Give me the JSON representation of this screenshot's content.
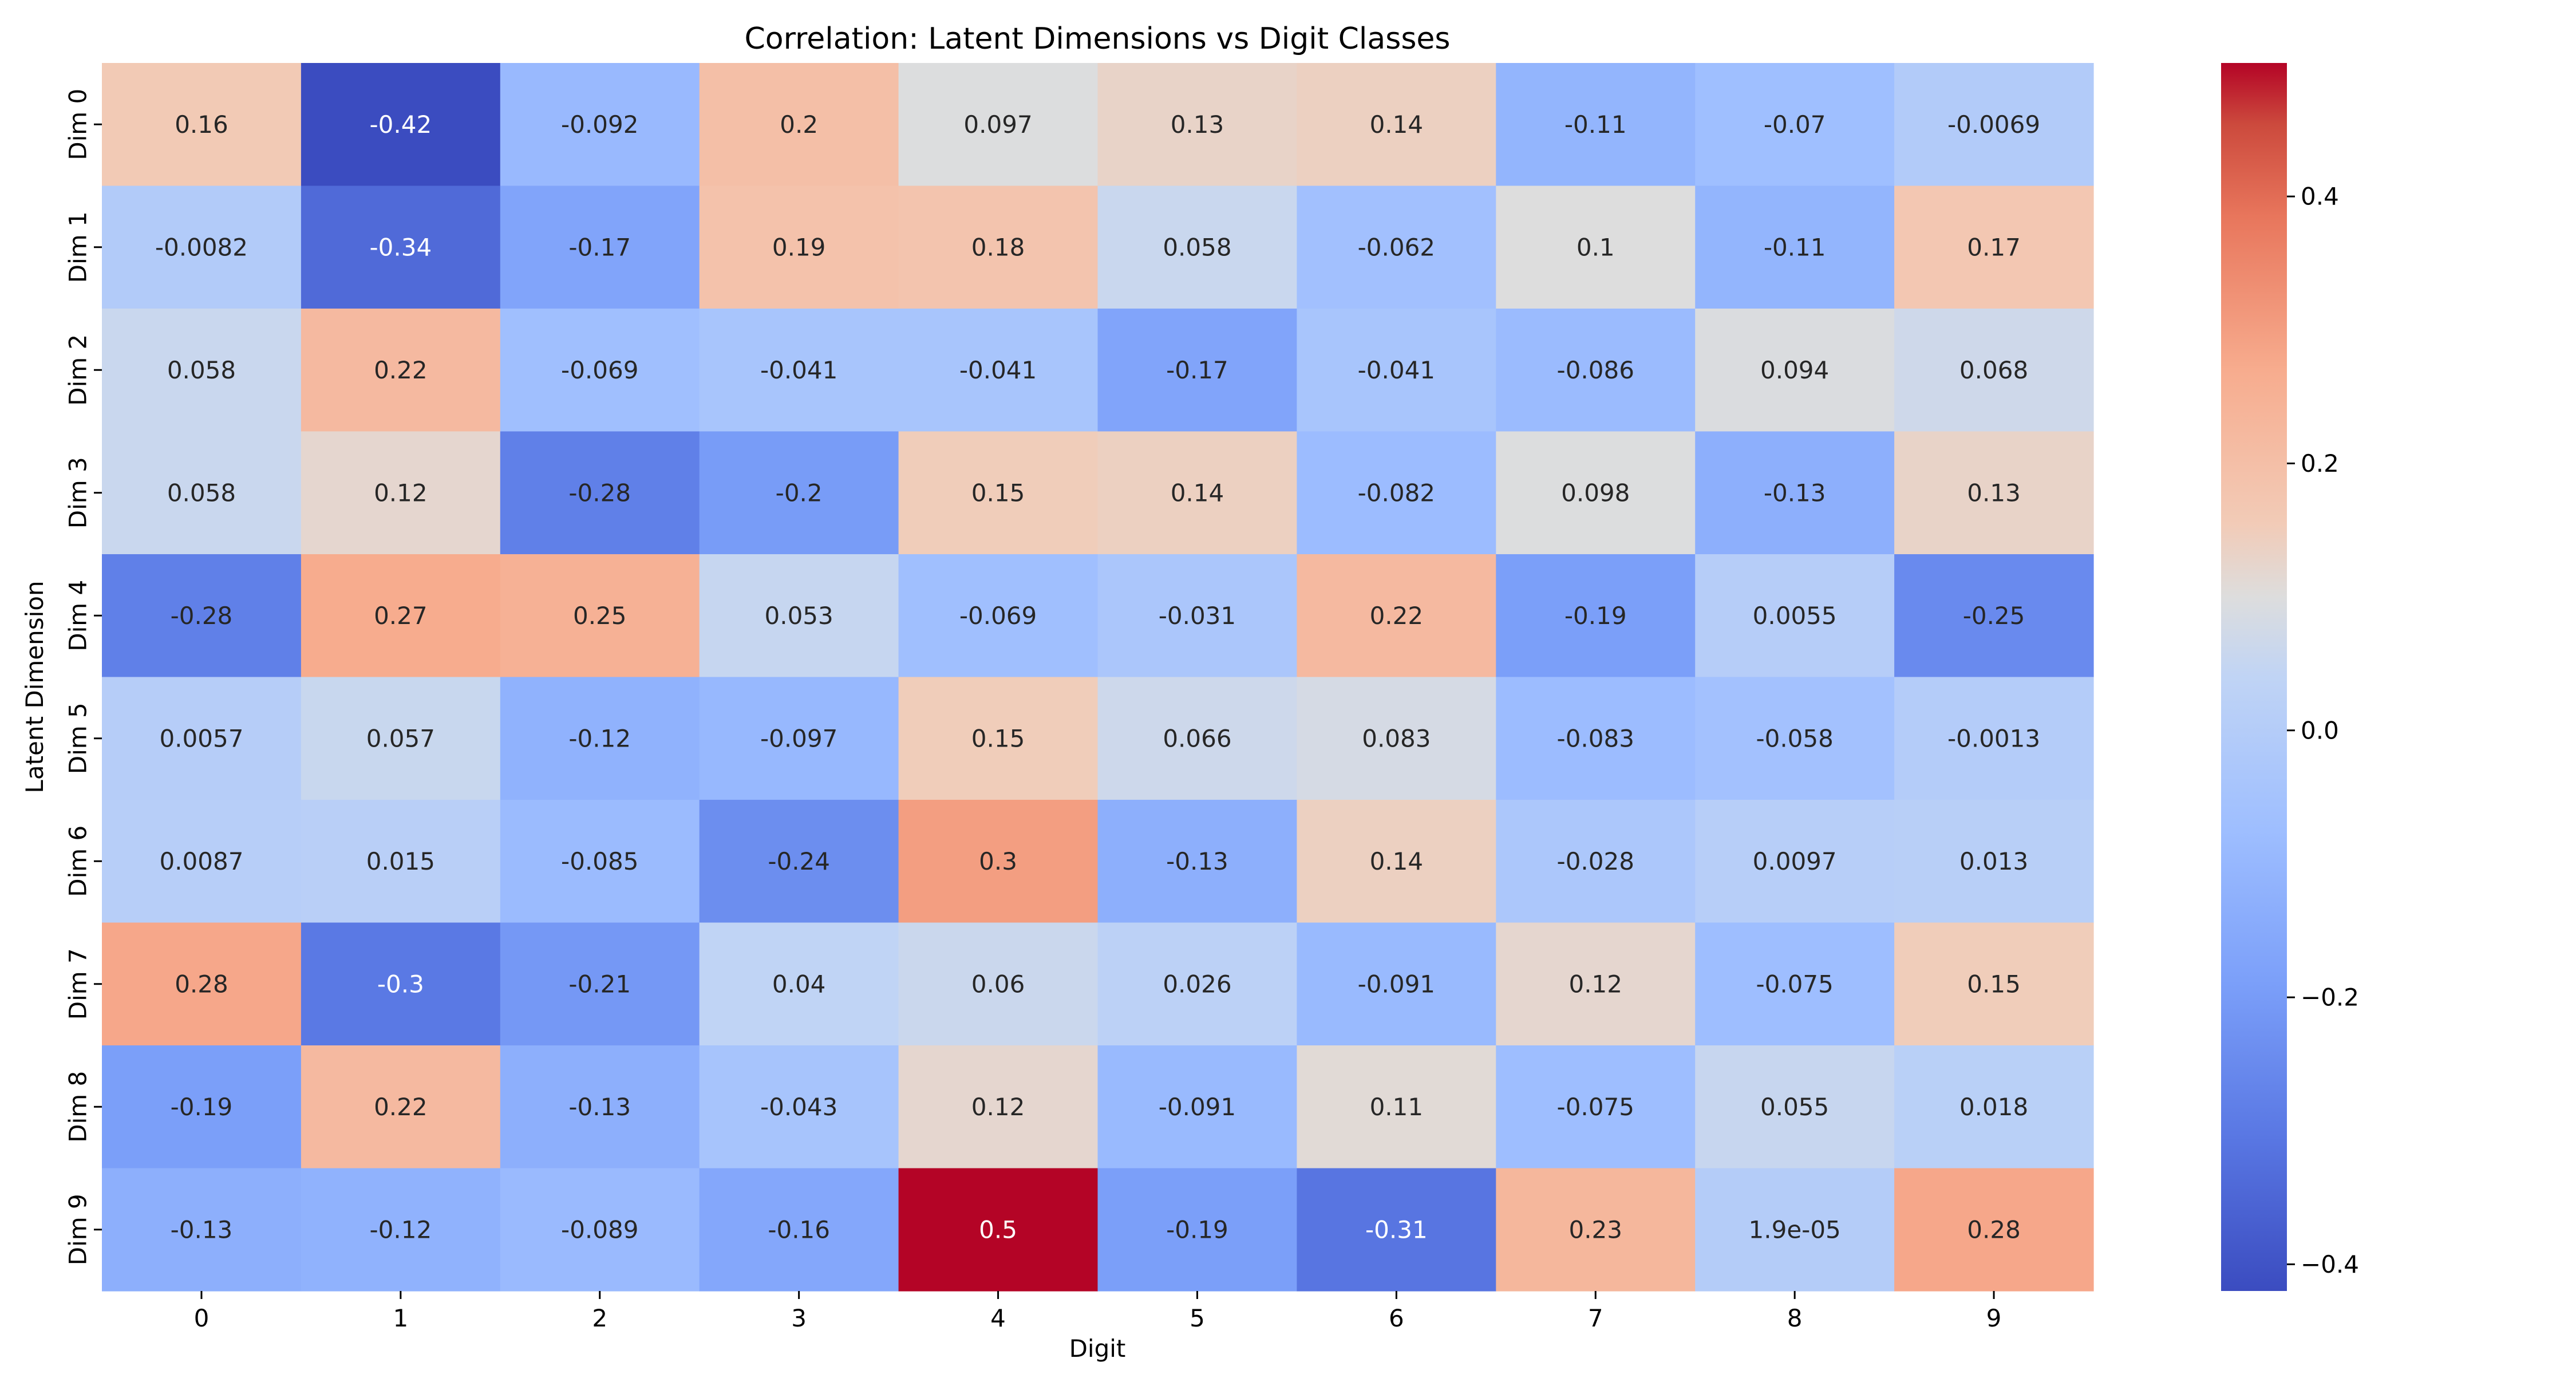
{
  "chart_data": {
    "type": "heatmap",
    "title": "Correlation: Latent Dimensions vs Digit Classes",
    "xlabel": "Digit",
    "ylabel": "Latent Dimension",
    "x_categories": [
      "0",
      "1",
      "2",
      "3",
      "4",
      "5",
      "6",
      "7",
      "8",
      "9"
    ],
    "y_categories": [
      "Dim 0",
      "Dim 1",
      "Dim 2",
      "Dim 3",
      "Dim 4",
      "Dim 5",
      "Dim 6",
      "Dim 7",
      "Dim 8",
      "Dim 9"
    ],
    "values": [
      [
        0.16,
        -0.42,
        -0.092,
        0.2,
        0.097,
        0.13,
        0.14,
        -0.11,
        -0.07,
        -0.0069
      ],
      [
        -0.0082,
        -0.34,
        -0.17,
        0.19,
        0.18,
        0.058,
        -0.062,
        0.1,
        -0.11,
        0.17
      ],
      [
        0.058,
        0.22,
        -0.069,
        -0.041,
        -0.041,
        -0.17,
        -0.041,
        -0.086,
        0.094,
        0.068
      ],
      [
        0.058,
        0.12,
        -0.28,
        -0.2,
        0.15,
        0.14,
        -0.082,
        0.098,
        -0.13,
        0.13
      ],
      [
        -0.28,
        0.27,
        0.25,
        0.053,
        -0.069,
        -0.031,
        0.22,
        -0.19,
        0.0055,
        -0.25
      ],
      [
        0.0057,
        0.057,
        -0.12,
        -0.097,
        0.15,
        0.066,
        0.083,
        -0.083,
        -0.058,
        -0.0013
      ],
      [
        0.0087,
        0.015,
        -0.085,
        -0.24,
        0.3,
        -0.13,
        0.14,
        -0.028,
        0.0097,
        0.013
      ],
      [
        0.28,
        -0.3,
        -0.21,
        0.04,
        0.06,
        0.026,
        -0.091,
        0.12,
        -0.075,
        0.15
      ],
      [
        -0.19,
        0.22,
        -0.13,
        -0.043,
        0.12,
        -0.091,
        0.11,
        -0.075,
        0.055,
        0.018
      ],
      [
        -0.13,
        -0.12,
        -0.089,
        -0.16,
        0.5,
        -0.19,
        -0.31,
        0.23,
        1.9e-05,
        0.28
      ]
    ],
    "labels": [
      [
        "0.16",
        "-0.42",
        "-0.092",
        "0.2",
        "0.097",
        "0.13",
        "0.14",
        "-0.11",
        "-0.07",
        "-0.0069"
      ],
      [
        "-0.0082",
        "-0.34",
        "-0.17",
        "0.19",
        "0.18",
        "0.058",
        "-0.062",
        "0.1",
        "-0.11",
        "0.17"
      ],
      [
        "0.058",
        "0.22",
        "-0.069",
        "-0.041",
        "-0.041",
        "-0.17",
        "-0.041",
        "-0.086",
        "0.094",
        "0.068"
      ],
      [
        "0.058",
        "0.12",
        "-0.28",
        "-0.2",
        "0.15",
        "0.14",
        "-0.082",
        "0.098",
        "-0.13",
        "0.13"
      ],
      [
        "-0.28",
        "0.27",
        "0.25",
        "0.053",
        "-0.069",
        "-0.031",
        "0.22",
        "-0.19",
        "0.0055",
        "-0.25"
      ],
      [
        "0.0057",
        "0.057",
        "-0.12",
        "-0.097",
        "0.15",
        "0.066",
        "0.083",
        "-0.083",
        "-0.058",
        "-0.0013"
      ],
      [
        "0.0087",
        "0.015",
        "-0.085",
        "-0.24",
        "0.3",
        "-0.13",
        "0.14",
        "-0.028",
        "0.0097",
        "0.013"
      ],
      [
        "0.28",
        "-0.3",
        "-0.21",
        "0.04",
        "0.06",
        "0.026",
        "-0.091",
        "0.12",
        "-0.075",
        "0.15"
      ],
      [
        "-0.19",
        "0.22",
        "-0.13",
        "-0.043",
        "0.12",
        "-0.091",
        "0.11",
        "-0.075",
        "0.055",
        "0.018"
      ],
      [
        "-0.13",
        "-0.12",
        "-0.089",
        "-0.16",
        "0.5",
        "-0.19",
        "-0.31",
        "0.23",
        "1.9e-05",
        "0.28"
      ]
    ],
    "colormap": "coolwarm",
    "colormap_stops": [
      "#3b4cc0",
      "#dddddd",
      "#b40426"
    ],
    "vmin": -0.42,
    "vmax": 0.5,
    "colorbar_ticks": [
      0.4,
      0.2,
      0.0,
      -0.2,
      -0.4
    ],
    "colorbar_tick_labels": [
      "0.4",
      "0.2",
      "0.0",
      "−0.2",
      "−0.4"
    ],
    "colorbar_position": "right",
    "grid": false
  }
}
